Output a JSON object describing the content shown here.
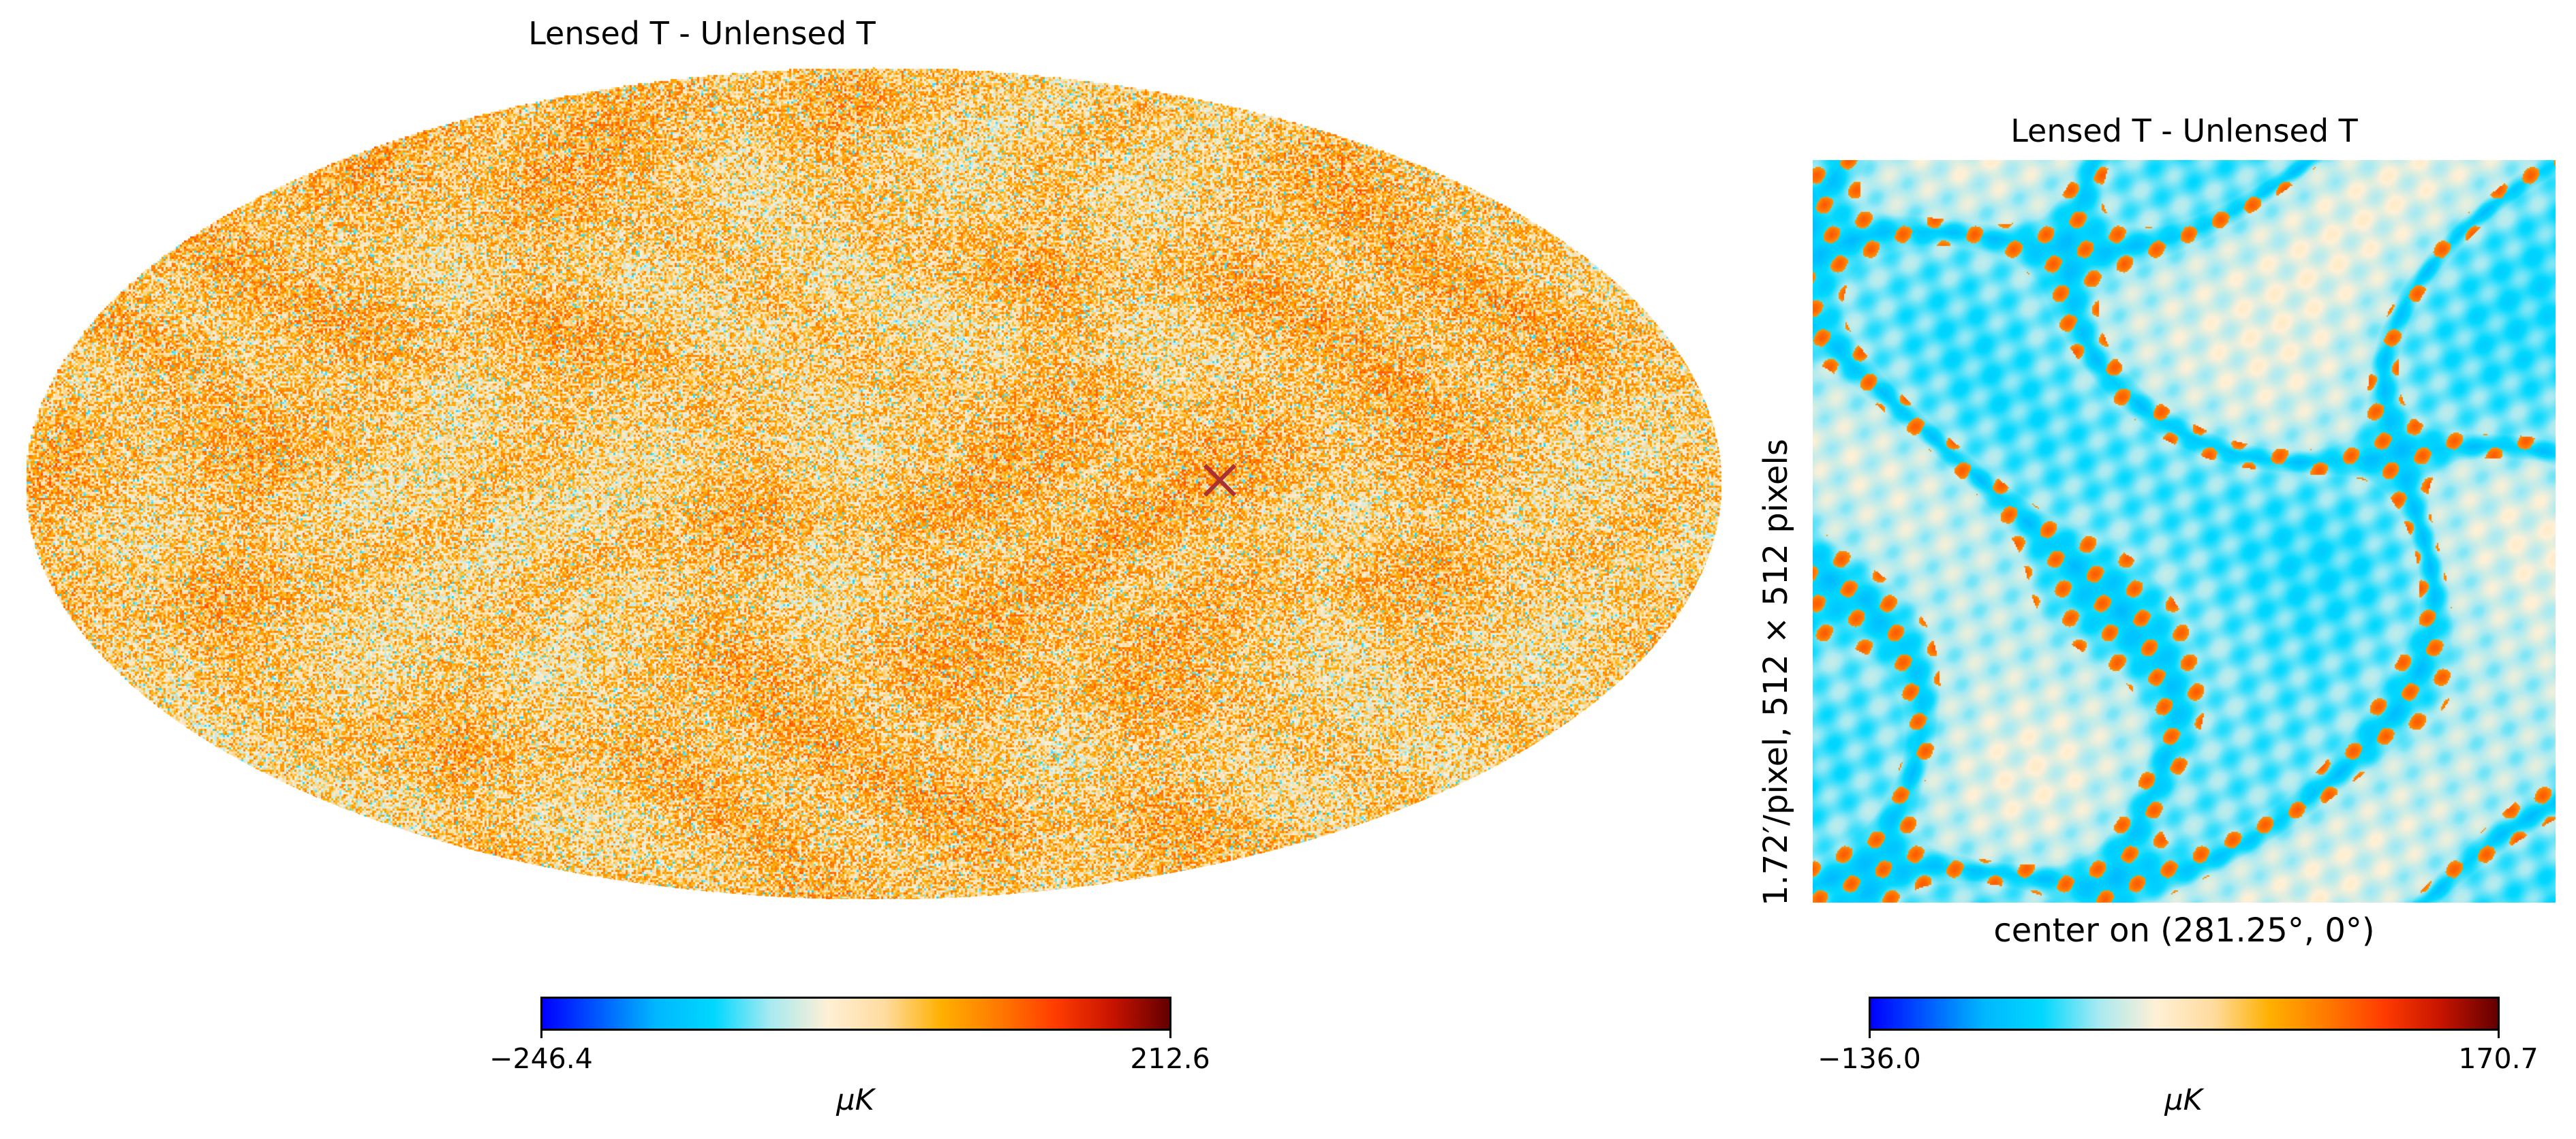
{
  "chart_data": [
    {
      "type": "heatmap",
      "projection": "mollweide",
      "title": "Lensed T - Unlensed T",
      "colormap": [
        "#0000ff",
        "#005cff",
        "#00b8ff",
        "#00d8ff",
        "#a8eaf2",
        "#fff0d6",
        "#ffdca0",
        "#ffb000",
        "#ff7a00",
        "#ff3c00",
        "#c81400",
        "#640000"
      ],
      "colorbar": {
        "min": -246.4,
        "max": 212.6,
        "min_label": "−246.4",
        "max_label": "212.6",
        "unit": "μK"
      },
      "marker": {
        "symbol": "×",
        "label": "",
        "lon_deg": 281.25,
        "lat_deg": 0,
        "color": "#a83232"
      }
    },
    {
      "type": "heatmap",
      "projection": "gnomonic",
      "title": "Lensed T - Unlensed T",
      "xlabel": "center on (281.25°, 0°)",
      "ylabel": "1.72′/pixel, 512 × 512 pixels",
      "colormap": [
        "#0000ff",
        "#005cff",
        "#00b8ff",
        "#00d8ff",
        "#a8eaf2",
        "#fff0d6",
        "#ffdca0",
        "#ffb000",
        "#ff7a00",
        "#ff3c00",
        "#c81400",
        "#640000"
      ],
      "colorbar": {
        "min": -136.0,
        "max": 170.7,
        "min_label": "−136.0",
        "max_label": "170.7",
        "unit": "μK"
      }
    }
  ]
}
